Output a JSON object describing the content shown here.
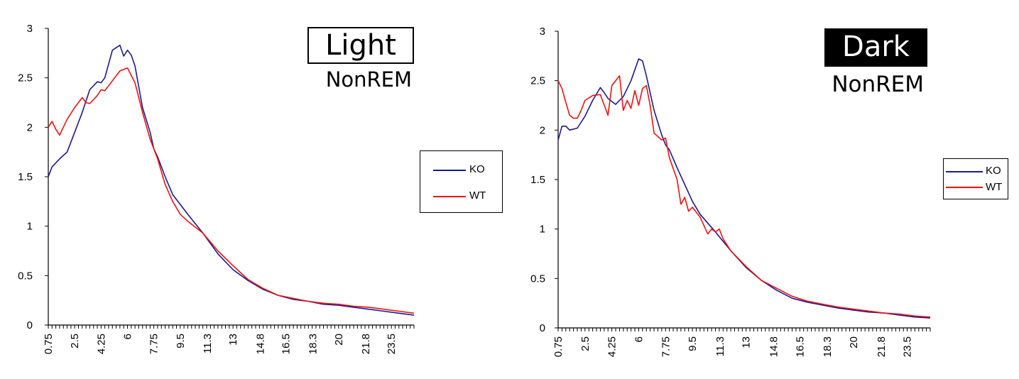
{
  "chart_data": [
    {
      "type": "line",
      "title": "Light",
      "subtitle": "NonREM",
      "title_style": "outlined",
      "ylim": [
        0,
        3
      ],
      "yticks": [
        "0",
        "0.5",
        "1",
        "1.5",
        "2",
        "2.5",
        "3"
      ],
      "xlim": [
        0.75,
        25
      ],
      "xticks": [
        "0.75",
        "2.5",
        "4.25",
        "6",
        "7.75",
        "9.5",
        "11.3",
        "13",
        "14.8",
        "16.5",
        "18.3",
        "20",
        "21.8",
        "23.5"
      ],
      "grid": false,
      "legend_position": "right",
      "series": [
        {
          "name": "KO",
          "color": "#1a1a8c",
          "x": [
            0.75,
            1.0,
            1.5,
            2.0,
            2.5,
            3.0,
            3.5,
            4.0,
            4.25,
            4.5,
            5.0,
            5.5,
            5.75,
            6.0,
            6.25,
            6.5,
            7.0,
            7.5,
            7.75,
            8.0,
            8.5,
            9.0,
            9.5,
            10.0,
            11.0,
            12.0,
            13.0,
            14.0,
            15.0,
            16.0,
            17.0,
            18.0,
            19.0,
            20.0,
            21.0,
            22.0,
            23.0,
            24.0,
            25.0
          ],
          "y": [
            1.5,
            1.6,
            1.68,
            1.75,
            1.95,
            2.15,
            2.38,
            2.46,
            2.45,
            2.5,
            2.78,
            2.83,
            2.72,
            2.78,
            2.73,
            2.62,
            2.2,
            1.95,
            1.78,
            1.7,
            1.5,
            1.32,
            1.22,
            1.12,
            0.93,
            0.72,
            0.56,
            0.45,
            0.36,
            0.3,
            0.26,
            0.24,
            0.21,
            0.2,
            0.18,
            0.16,
            0.14,
            0.12,
            0.1
          ]
        },
        {
          "name": "WT",
          "color": "#ee1111",
          "x": [
            0.75,
            1.0,
            1.25,
            1.5,
            1.75,
            2.0,
            2.5,
            3.0,
            3.25,
            3.5,
            4.0,
            4.25,
            4.5,
            5.0,
            5.5,
            6.0,
            6.5,
            7.0,
            7.5,
            7.75,
            8.0,
            8.5,
            9.0,
            9.5,
            10.0,
            11.0,
            12.0,
            13.0,
            14.0,
            15.0,
            16.0,
            17.0,
            18.0,
            19.0,
            20.0,
            21.0,
            22.0,
            23.0,
            24.0,
            25.0
          ],
          "y": [
            2.0,
            2.06,
            1.98,
            1.92,
            2.0,
            2.08,
            2.2,
            2.3,
            2.25,
            2.24,
            2.32,
            2.38,
            2.37,
            2.47,
            2.57,
            2.6,
            2.45,
            2.15,
            1.88,
            1.78,
            1.68,
            1.42,
            1.25,
            1.12,
            1.05,
            0.93,
            0.75,
            0.6,
            0.46,
            0.37,
            0.3,
            0.27,
            0.24,
            0.22,
            0.21,
            0.19,
            0.18,
            0.16,
            0.14,
            0.12
          ]
        }
      ]
    },
    {
      "type": "line",
      "title": "Dark",
      "subtitle": "NonREM",
      "title_style": "filled",
      "ylim": [
        0,
        3
      ],
      "yticks": [
        "0",
        "0.5",
        "1",
        "1.5",
        "2",
        "2.5",
        "3"
      ],
      "xlim": [
        0.75,
        25
      ],
      "xticks": [
        "0.75",
        "2.5",
        "4.25",
        "6",
        "7.75",
        "9.5",
        "11.3",
        "13",
        "14.8",
        "16.5",
        "18.3",
        "20",
        "21.8",
        "23.5"
      ],
      "grid": false,
      "legend_position": "right",
      "series": [
        {
          "name": "KO",
          "color": "#1a1a8c",
          "x": [
            0.75,
            1.0,
            1.25,
            1.5,
            2.0,
            2.5,
            3.0,
            3.5,
            3.75,
            4.0,
            4.5,
            5.0,
            5.5,
            6.0,
            6.25,
            6.5,
            7.0,
            7.5,
            7.75,
            8.0,
            8.5,
            9.0,
            9.5,
            10.0,
            11.0,
            12.0,
            13.0,
            14.0,
            15.0,
            16.0,
            17.0,
            18.0,
            19.0,
            20.0,
            21.0,
            22.0,
            23.0,
            24.0,
            25.0
          ],
          "y": [
            1.9,
            2.04,
            2.04,
            2.0,
            2.02,
            2.14,
            2.3,
            2.43,
            2.38,
            2.32,
            2.26,
            2.34,
            2.5,
            2.72,
            2.7,
            2.55,
            2.2,
            1.95,
            1.85,
            1.8,
            1.62,
            1.45,
            1.28,
            1.15,
            0.97,
            0.78,
            0.61,
            0.48,
            0.38,
            0.3,
            0.26,
            0.23,
            0.2,
            0.18,
            0.16,
            0.15,
            0.13,
            0.11,
            0.1
          ]
        },
        {
          "name": "WT",
          "color": "#ee1111",
          "x": [
            0.75,
            1.0,
            1.25,
            1.5,
            1.75,
            2.0,
            2.25,
            2.5,
            3.0,
            3.5,
            4.0,
            4.25,
            4.5,
            4.75,
            5.0,
            5.25,
            5.5,
            5.75,
            6.0,
            6.25,
            6.5,
            6.75,
            7.0,
            7.5,
            7.75,
            8.0,
            8.5,
            8.75,
            9.0,
            9.25,
            9.5,
            10.0,
            10.5,
            10.75,
            11.0,
            11.25,
            11.5,
            12.0,
            13.0,
            14.0,
            15.0,
            16.0,
            17.0,
            18.0,
            19.0,
            20.0,
            21.0,
            22.0,
            23.0,
            24.0,
            25.0
          ],
          "y": [
            2.5,
            2.42,
            2.28,
            2.15,
            2.12,
            2.12,
            2.2,
            2.3,
            2.35,
            2.36,
            2.15,
            2.45,
            2.5,
            2.55,
            2.2,
            2.3,
            2.22,
            2.4,
            2.25,
            2.42,
            2.45,
            2.25,
            1.97,
            1.9,
            1.92,
            1.72,
            1.5,
            1.25,
            1.32,
            1.18,
            1.22,
            1.12,
            0.95,
            1.0,
            0.97,
            1.0,
            0.9,
            0.78,
            0.62,
            0.48,
            0.4,
            0.32,
            0.27,
            0.24,
            0.21,
            0.19,
            0.17,
            0.15,
            0.14,
            0.12,
            0.11
          ]
        }
      ]
    }
  ]
}
